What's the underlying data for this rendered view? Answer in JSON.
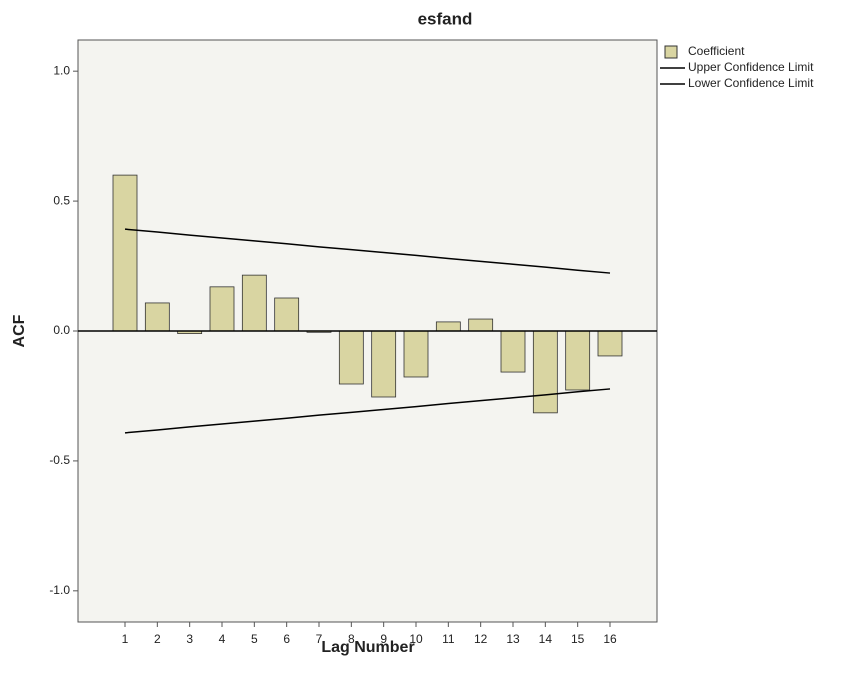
{
  "chart_data": {
    "type": "bar",
    "title": "esfand",
    "x_label": "Lag Number",
    "y_label": "ACF",
    "categories": [
      "1",
      "2",
      "3",
      "4",
      "5",
      "6",
      "7",
      "8",
      "9",
      "10",
      "11",
      "12",
      "13",
      "14",
      "15",
      "16"
    ],
    "series": [
      {
        "name": "Coefficient",
        "type": "bar",
        "color": "#d9d5a2",
        "values": [
          0.6,
          0.108,
          -0.01,
          0.17,
          0.215,
          0.127,
          -0.005,
          -0.204,
          -0.254,
          -0.177,
          0.035,
          0.046,
          -0.158,
          -0.315,
          -0.227,
          -0.096
        ]
      },
      {
        "name": "Upper Confidence Limit",
        "type": "line",
        "color": "#000000",
        "values": [
          0.392,
          0.381,
          0.369,
          0.358,
          0.347,
          0.336,
          0.324,
          0.313,
          0.302,
          0.291,
          0.279,
          0.268,
          0.257,
          0.246,
          0.234,
          0.223
        ]
      },
      {
        "name": "Lower Confidence Limit",
        "type": "line",
        "color": "#000000",
        "values": [
          -0.392,
          -0.381,
          -0.369,
          -0.358,
          -0.347,
          -0.336,
          -0.324,
          -0.313,
          -0.302,
          -0.291,
          -0.279,
          -0.268,
          -0.257,
          -0.246,
          -0.234,
          -0.223
        ]
      }
    ],
    "ylim": [
      -1.12,
      1.12
    ],
    "yticks": [
      {
        "value": -1.0,
        "label": "-1.0"
      },
      {
        "value": -0.5,
        "label": "-0.5"
      },
      {
        "value": 0,
        "label": "0.0"
      },
      {
        "value": 0.5,
        "label": "0.5"
      },
      {
        "value": 1.0,
        "label": "1.0"
      }
    ],
    "grid": false,
    "legend": "top-right"
  }
}
